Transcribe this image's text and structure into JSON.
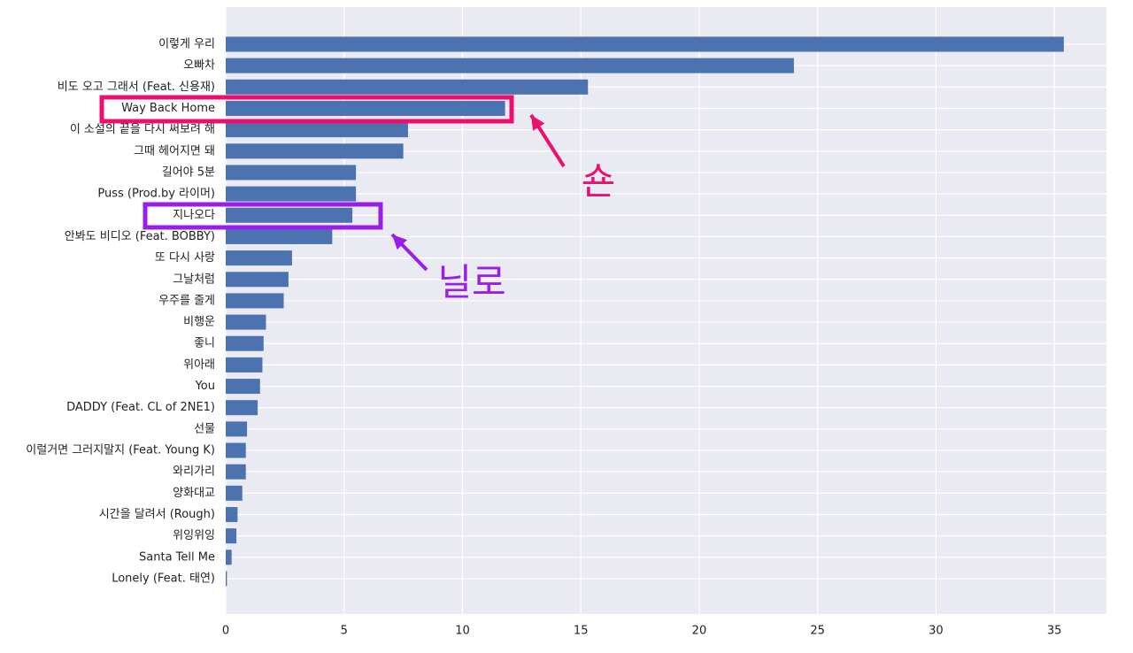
{
  "chart_data": {
    "type": "barh",
    "categories": [
      "이렇게 우리",
      "오빠차",
      "비도 오고 그래서 (Feat. 신용재)",
      "Way Back Home",
      "이 소설의 끝을 다시 써보려 해",
      "그때 헤어지면 돼",
      "길어야 5분",
      "Puss (Prod.by 라이머)",
      "지나오다",
      "안봐도 비디오 (Feat. BOBBY)",
      "또 다시 사랑",
      "그날처럼",
      "우주를 줄게",
      "비행운",
      "좋니",
      "위아래",
      "You",
      "DADDY (Feat. CL of 2NE1)",
      "선물",
      "이럴거면 그러지말지 (Feat. Young K)",
      "와리가리",
      "양화대교",
      "시간을 달려서 (Rough)",
      "위잉위잉",
      "Santa Tell Me",
      "Lonely (Feat. 태연)"
    ],
    "values": [
      35.4,
      24.0,
      15.3,
      11.8,
      7.7,
      7.5,
      5.5,
      5.5,
      5.35,
      4.5,
      2.8,
      2.65,
      2.45,
      1.7,
      1.6,
      1.55,
      1.45,
      1.35,
      0.9,
      0.85,
      0.85,
      0.7,
      0.5,
      0.45,
      0.25,
      0.05
    ],
    "color": "#4c72b0",
    "xlim": [
      0,
      37.2
    ],
    "xticks": [
      0,
      5,
      10,
      15,
      20,
      25,
      30,
      35
    ],
    "grid": true,
    "annotations": [
      {
        "text": "숀",
        "color": "#ec0f6e"
      },
      {
        "text": "닐로",
        "color": "#9a1ee8"
      }
    ]
  }
}
